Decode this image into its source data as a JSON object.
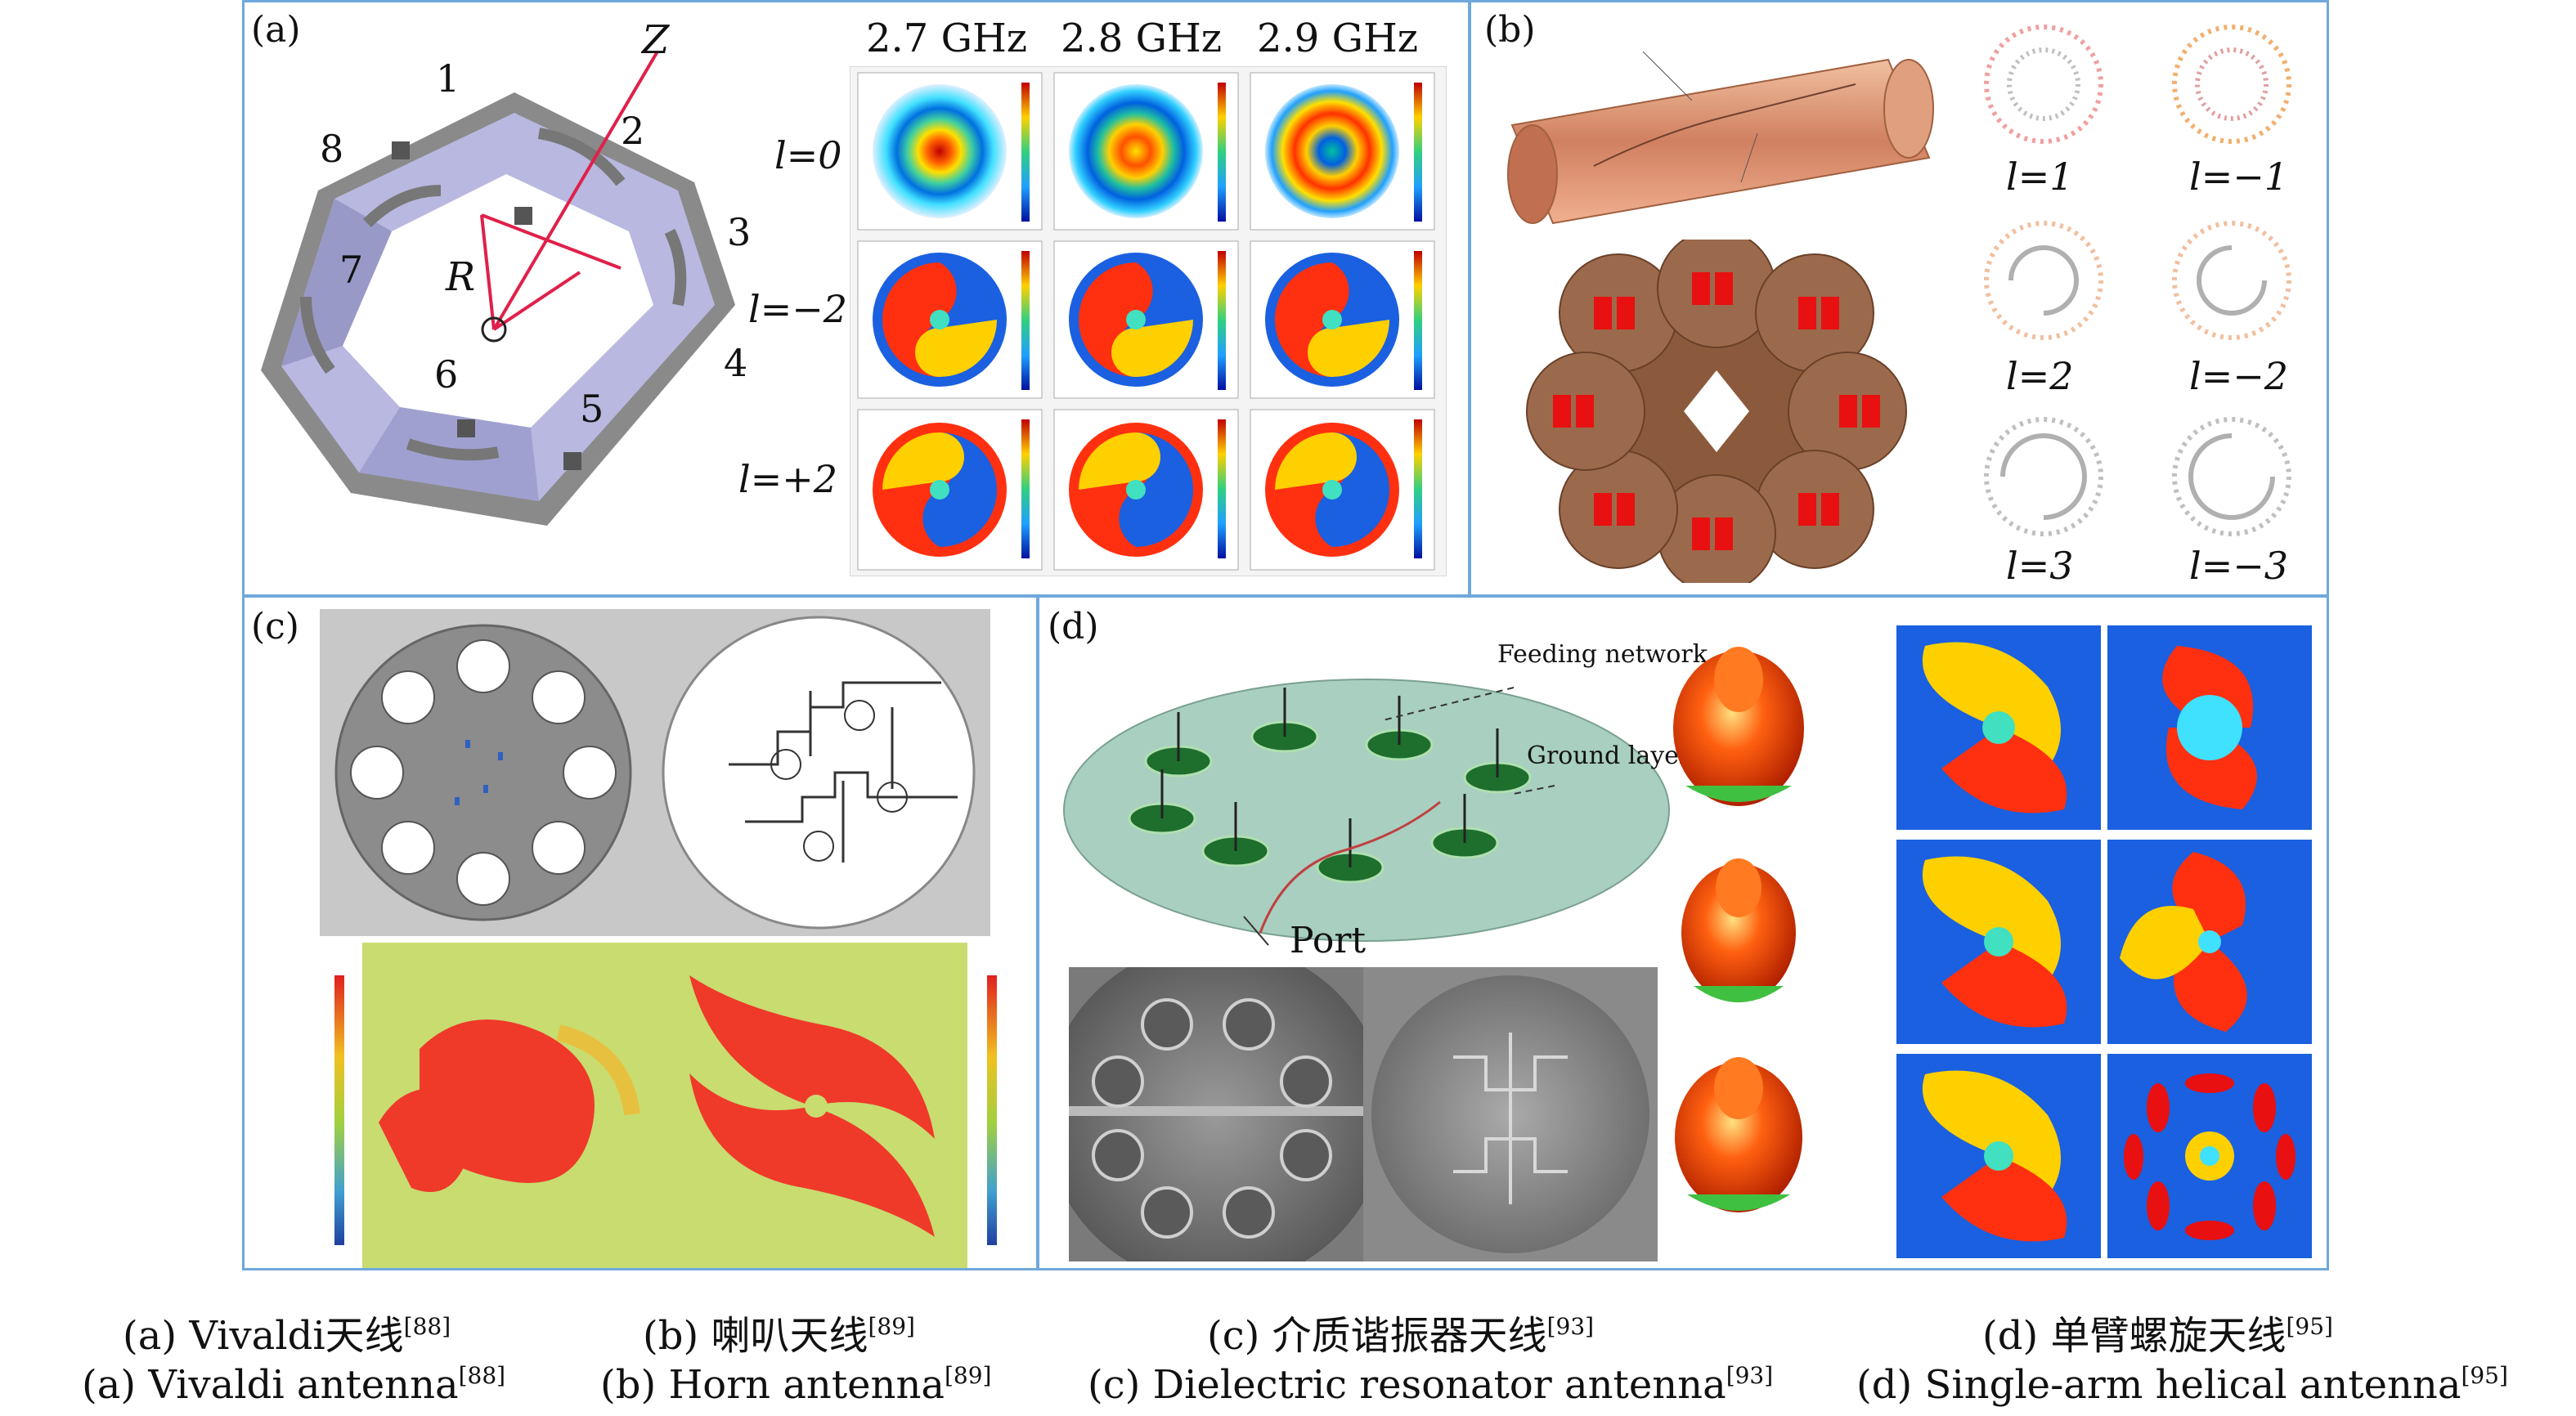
{
  "panels": {
    "a": {
      "label": "(a)",
      "axis_label": "Z",
      "radius_label": "R",
      "element_numbers": [
        "1",
        "2",
        "3",
        "4",
        "5",
        "6",
        "7",
        "8"
      ],
      "freq_labels": [
        "2.7 GHz",
        "2.8 GHz",
        "2.9 GHz"
      ],
      "mode_labels": [
        "l=0",
        "l=−2",
        "l=+2"
      ]
    },
    "b": {
      "label": "(b)",
      "mode_labels": [
        "l=1",
        "l=−1",
        "l=2",
        "l=−2",
        "l=3",
        "l=−3"
      ]
    },
    "c": {
      "label": "(c)"
    },
    "d": {
      "label": "(d)",
      "feeding_network": "Feeding network",
      "ground_layer": "Ground layer",
      "port": "Port"
    }
  },
  "captions": [
    {
      "zh": "(a) Vivaldi天线",
      "zh_ref": "[88]",
      "en": "(a) Vivaldi antenna",
      "en_ref": "[88]"
    },
    {
      "zh": "(b) 喇叭天线",
      "zh_ref": "[89]",
      "en": "(b) Horn antenna",
      "en_ref": "[89]"
    },
    {
      "zh": "(c) 介质谐振器天线",
      "zh_ref": "[93]",
      "en": "(c) Dielectric resonator antenna",
      "en_ref": "[93]"
    },
    {
      "zh": "(d) 单臂螺旋天线",
      "zh_ref": "[95]",
      "en": "(d) Single-arm helical antenna",
      "en_ref": "[95]"
    }
  ],
  "colors": {
    "panel_border": "#6fa8dc",
    "frame_border": "#8aa0b8"
  }
}
